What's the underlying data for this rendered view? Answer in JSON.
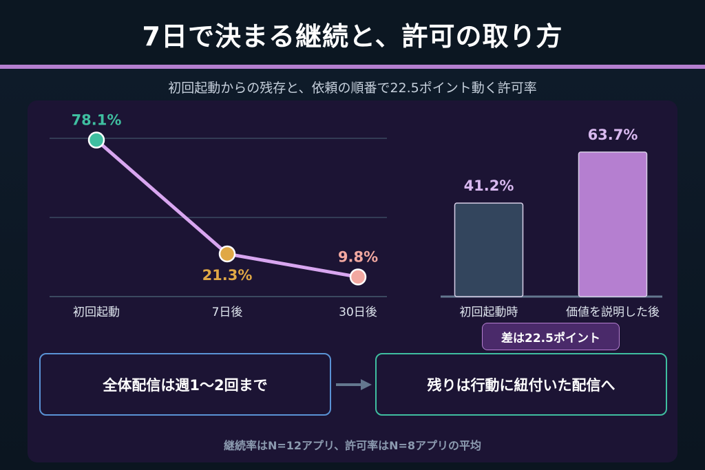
{
  "title": "7日で決まる継続と、許可の取り方",
  "subtitle": "初回起動からの残存と、依頼の順番で22.5ポイント動く許可率",
  "colors": {
    "accent": "#b57fd0",
    "line": "#d8a6f0",
    "point_day1": "#3fbfa0",
    "point_day7": "#e0a845",
    "point_day30": "#f2a8a0",
    "bar_before": "#33455d",
    "bar_after": "#b57fd0"
  },
  "chart_data": [
    {
      "type": "line",
      "categories": [
        "初回起動",
        "7日後",
        "30日後"
      ],
      "values": [
        78.1,
        21.3,
        9.8
      ],
      "labels": [
        "78.1%",
        "21.3%",
        "9.8%"
      ],
      "ylim": [
        0,
        80
      ],
      "grid": true
    },
    {
      "type": "bar",
      "categories": [
        "初回起動時",
        "価値を説明した後"
      ],
      "values": [
        41.2,
        63.7
      ],
      "labels": [
        "41.2%",
        "63.7%"
      ],
      "ylim": [
        0,
        70
      ],
      "annotation": "差は22.5ポイント"
    }
  ],
  "flow": {
    "left": "全体配信は週1〜2回まで",
    "right": "残りは行動に紐付いた配信へ",
    "arrow_icon": "arrow-right-icon"
  },
  "footnote": "継続率はN=12アプリ、許可率はN=8アプリの平均"
}
